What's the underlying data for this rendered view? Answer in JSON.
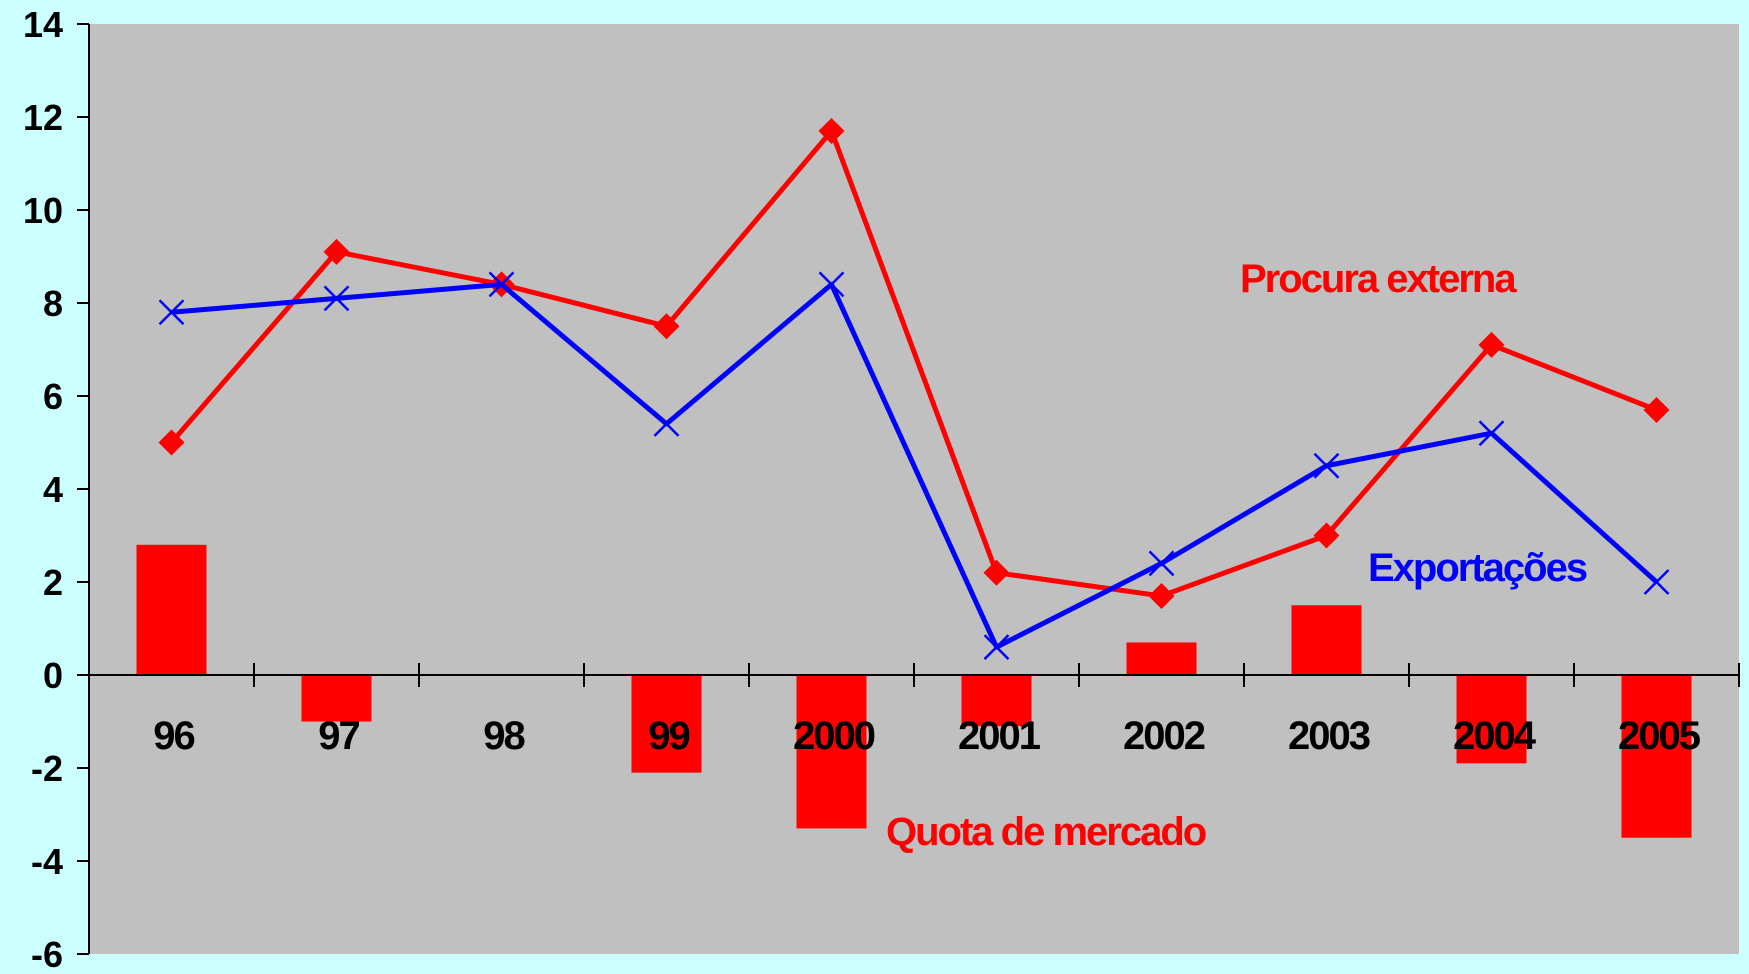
{
  "chart_data": {
    "type": "bar+line",
    "title": "",
    "xlabel": "",
    "ylabel": "",
    "ylim": [
      -6,
      14
    ],
    "yticks": [
      14,
      12,
      10,
      8,
      6,
      4,
      2,
      0,
      -2,
      -4,
      -6
    ],
    "categories": [
      "96",
      "97",
      "98",
      "99",
      "2000",
      "2001",
      "2002",
      "2003",
      "2004",
      "2005"
    ],
    "grid": false,
    "series": [
      {
        "name": "Procura externa",
        "type": "line",
        "marker": "diamond",
        "color": "#ff0000",
        "values": [
          5.0,
          9.1,
          8.4,
          7.5,
          11.7,
          2.2,
          1.7,
          3.0,
          7.1,
          5.7
        ]
      },
      {
        "name": "Exportações",
        "type": "line",
        "marker": "x",
        "color": "#0000ff",
        "values": [
          7.8,
          8.1,
          8.4,
          5.4,
          8.4,
          0.6,
          2.4,
          4.5,
          5.2,
          2.0
        ]
      },
      {
        "name": "Quota de mercado",
        "type": "bar",
        "color": "#ff0000",
        "values": [
          2.8,
          -1.0,
          0.0,
          -2.1,
          -3.3,
          -1.1,
          0.7,
          1.5,
          -1.9,
          -3.5
        ]
      }
    ]
  },
  "colors": {
    "page_background": "#ccffff",
    "plot_background": "#c0c0c0",
    "axis": "#000000"
  }
}
